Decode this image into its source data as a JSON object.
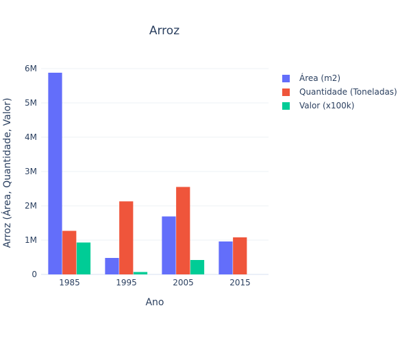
{
  "chart_data": {
    "type": "bar",
    "title": "Arroz",
    "xlabel": "Ano",
    "ylabel": "Arroz (Área, Quantidade, Valor)",
    "categories": [
      "1985",
      "1995",
      "2005",
      "2015"
    ],
    "ylim": [
      0,
      6200000
    ],
    "yticks": [
      0,
      1000000,
      2000000,
      3000000,
      4000000,
      5000000,
      6000000
    ],
    "ytick_labels": [
      "0",
      "1M",
      "2M",
      "3M",
      "4M",
      "5M",
      "6M"
    ],
    "grid": true,
    "legend_position": "top-right",
    "series": [
      {
        "name": "Área (m2)",
        "color": "#636efa",
        "values": [
          5880000,
          480000,
          1690000,
          960000
        ]
      },
      {
        "name": "Quantidade (Toneladas)",
        "color": "#ef553b",
        "values": [
          1270000,
          2130000,
          2550000,
          1080000
        ]
      },
      {
        "name": "Valor (x100k)",
        "color": "#00cc96",
        "values": [
          930000,
          70000,
          420000,
          0
        ]
      }
    ]
  }
}
